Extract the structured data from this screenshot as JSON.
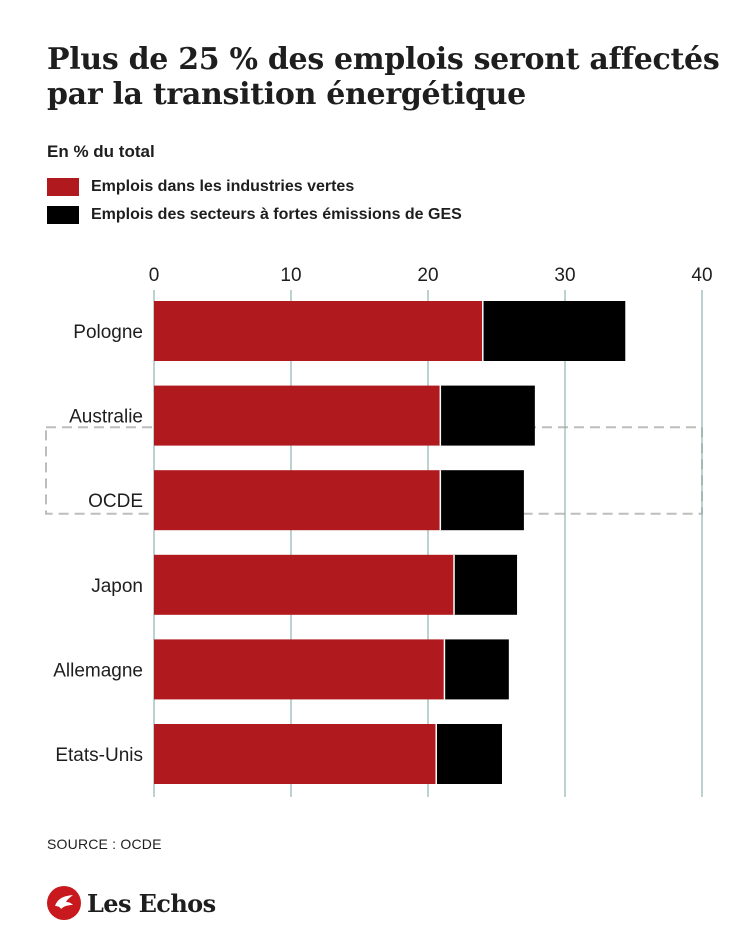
{
  "header": {
    "title": "Plus de 25 % des emplois seront affectés par la transition énergétique",
    "subtitle": "En % du total"
  },
  "colors": {
    "green_jobs": "#b0191d",
    "ghg_jobs": "#000000",
    "grid": "#8fb5b0",
    "highlight_border": "#bdbdbd",
    "logo": "#c8191e"
  },
  "chart_data": {
    "type": "bar",
    "orientation": "horizontal",
    "stacked": true,
    "categories": [
      "Pologne",
      "Australie",
      "OCDE",
      "Japon",
      "Allemagne",
      "Etats-Unis"
    ],
    "series": [
      {
        "name": "Emplois dans les industries vertes",
        "values": [
          24.0,
          20.9,
          20.9,
          21.9,
          21.2,
          20.6
        ]
      },
      {
        "name": "Emplois des secteurs à fortes émissions de GES",
        "values": [
          10.4,
          6.9,
          6.1,
          4.6,
          4.7,
          4.8
        ]
      }
    ],
    "xlim": [
      0,
      40
    ],
    "xticks": [
      "0",
      "10",
      "20",
      "30",
      "40"
    ],
    "highlighted_category": "OCDE",
    "legend_position": "top-left",
    "grid": "vertical"
  },
  "footer": {
    "source": "SOURCE : OCDE",
    "brand": "Les Echos"
  }
}
